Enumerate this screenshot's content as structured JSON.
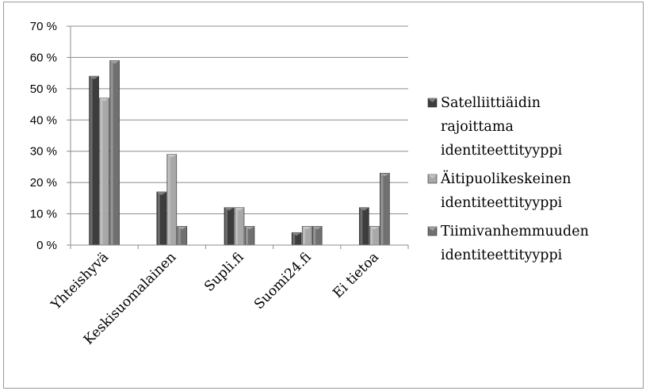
{
  "chart_data": {
    "type": "bar",
    "categories": [
      "Yhteishyvä",
      "Keskisuomalainen",
      "Supli.fi",
      "Suomi24.fi",
      "Ei tietoa"
    ],
    "series": [
      {
        "name": "Satelliittiäidin rajoittama identiteettityyppi",
        "legend_lines": [
          "Satelliittiäidin",
          "rajoittama",
          "identiteettityyppi"
        ],
        "color": "#3d3d3d",
        "values": [
          54,
          17,
          12,
          4,
          12
        ]
      },
      {
        "name": "Äitipuolikeskeinen identiteettityyppi",
        "legend_lines": [
          "Äitipuolikeskeinen",
          "identiteettityyppi"
        ],
        "color": "#a8a8a8",
        "values": [
          47,
          29,
          12,
          6,
          6
        ]
      },
      {
        "name": "Tiimivanhemmuuden identiteettityyppi",
        "legend_lines": [
          "Tiimivanhemmuuden",
          "identiteettityyppi"
        ],
        "color": "#707070",
        "values": [
          59,
          6,
          6,
          6,
          23
        ]
      }
    ],
    "y_ticks": [
      "0 %",
      "10 %",
      "20 %",
      "30 %",
      "40 %",
      "50 %",
      "60 %",
      "70 %"
    ],
    "ylim": [
      0,
      70
    ],
    "y_tick_step": 10,
    "grid": true,
    "legend_position": "right",
    "title": "",
    "xlabel": "",
    "ylabel": ""
  }
}
